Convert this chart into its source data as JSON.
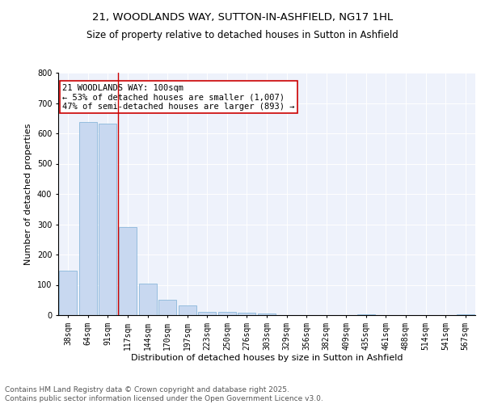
{
  "title": "21, WOODLANDS WAY, SUTTON-IN-ASHFIELD, NG17 1HL",
  "subtitle": "Size of property relative to detached houses in Sutton in Ashfield",
  "xlabel": "Distribution of detached houses by size in Sutton in Ashfield",
  "ylabel": "Number of detached properties",
  "categories": [
    "38sqm",
    "64sqm",
    "91sqm",
    "117sqm",
    "144sqm",
    "170sqm",
    "197sqm",
    "223sqm",
    "250sqm",
    "276sqm",
    "303sqm",
    "329sqm",
    "356sqm",
    "382sqm",
    "409sqm",
    "435sqm",
    "461sqm",
    "488sqm",
    "514sqm",
    "541sqm",
    "567sqm"
  ],
  "values": [
    148,
    637,
    632,
    290,
    103,
    50,
    33,
    12,
    11,
    8,
    5,
    0,
    0,
    0,
    0,
    2,
    0,
    0,
    0,
    0,
    3
  ],
  "bar_color": "#c8d8f0",
  "bar_edge_color": "#7aaed4",
  "vline_x": 2.5,
  "vline_color": "#cc0000",
  "annotation_text": "21 WOODLANDS WAY: 100sqm\n← 53% of detached houses are smaller (1,007)\n47% of semi-detached houses are larger (893) →",
  "annotation_box_color": "#ffffff",
  "annotation_box_edge": "#cc0000",
  "ylim": [
    0,
    800
  ],
  "yticks": [
    0,
    100,
    200,
    300,
    400,
    500,
    600,
    700,
    800
  ],
  "background_color": "#eef2fb",
  "footer": "Contains HM Land Registry data © Crown copyright and database right 2025.\nContains public sector information licensed under the Open Government Licence v3.0.",
  "title_fontsize": 9.5,
  "subtitle_fontsize": 8.5,
  "xlabel_fontsize": 8,
  "ylabel_fontsize": 8,
  "tick_fontsize": 7,
  "annotation_fontsize": 7.5,
  "footer_fontsize": 6.5
}
